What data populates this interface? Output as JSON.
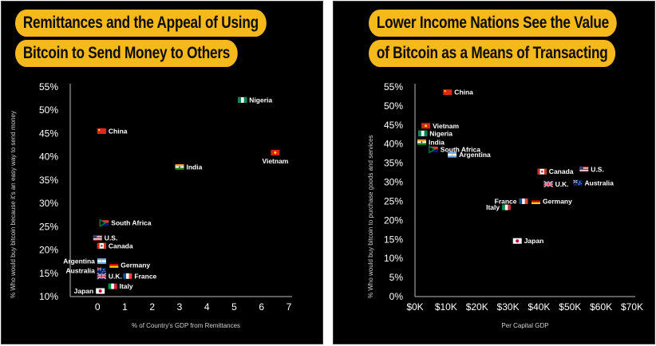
{
  "colors": {
    "background": "#000000",
    "accent": "#f6b91c",
    "axis": "#bdbdbd",
    "text": "#ffffff"
  },
  "panels": [
    {
      "title_line1": "Remittances and the Appeal of Using",
      "title_line2": "Bitcoin to Send Money to Others",
      "ylabel": "% Who would buy bitcoin because it's an easy way to send money",
      "xlabel": "% of Country's GDP from Remittances"
    },
    {
      "title_line1": "Lower Income Nations See the Value",
      "title_line2": "of Bitcoin as a Means of Transacting",
      "ylabel": "% Who would buy bitcoin to purchase goods and services",
      "xlabel": "Per Capital GDP"
    }
  ],
  "chart_data": [
    {
      "type": "scatter",
      "title": "Remittances and the Appeal of Using Bitcoin to Send Money to Others",
      "xlabel": "% of Country's GDP from Remittances",
      "ylabel": "% Who would buy bitcoin because it's an easy way to send money",
      "xlim": [
        -1,
        7
      ],
      "ylim": [
        10,
        55
      ],
      "x_ticks": [
        "0",
        "1",
        "2",
        "3",
        "4",
        "5",
        "6",
        "7"
      ],
      "y_ticks": [
        "10%",
        "15%",
        "20%",
        "25%",
        "30%",
        "35%",
        "40%",
        "45%",
        "50%",
        "55%"
      ],
      "grid": false,
      "points": [
        {
          "label": "Nigeria",
          "flag": "nigeria-flag",
          "x": 5.3,
          "y": 52.2,
          "label_side": "right"
        },
        {
          "label": "China",
          "flag": "china-flag",
          "x": 0.15,
          "y": 45.5,
          "label_side": "right"
        },
        {
          "label": "Vietnam",
          "flag": "vietnam-flag",
          "x": 6.5,
          "y": 40.9,
          "label_side": "below"
        },
        {
          "label": "India",
          "flag": "india-flag",
          "x": 3.0,
          "y": 37.8,
          "label_side": "right"
        },
        {
          "label": "South Africa",
          "flag": "south-africa-flag",
          "x": 0.25,
          "y": 25.8,
          "label_side": "right"
        },
        {
          "label": "U.S.",
          "flag": "us-flag",
          "x": 0.0,
          "y": 22.6,
          "label_side": "right"
        },
        {
          "label": "Canada",
          "flag": "canada-flag",
          "x": 0.15,
          "y": 20.9,
          "label_side": "right"
        },
        {
          "label": "Argentina",
          "flag": "argentina-flag",
          "x": 0.15,
          "y": 17.6,
          "label_side": "left"
        },
        {
          "label": "Germany",
          "flag": "germany-flag",
          "x": 0.6,
          "y": 16.8,
          "label_side": "right"
        },
        {
          "label": "Australia",
          "flag": "australia-flag",
          "x": 0.15,
          "y": 15.6,
          "label_side": "left"
        },
        {
          "label": "U.K.",
          "flag": "uk-flag",
          "x": 0.15,
          "y": 14.4,
          "label_side": "right"
        },
        {
          "label": "France",
          "flag": "france-flag",
          "x": 1.1,
          "y": 14.4,
          "label_side": "right"
        },
        {
          "label": "Italy",
          "flag": "italy-flag",
          "x": 0.55,
          "y": 12.2,
          "label_side": "right"
        },
        {
          "label": "Japan",
          "flag": "japan-flag",
          "x": 0.1,
          "y": 11.2,
          "label_side": "left"
        }
      ]
    },
    {
      "type": "scatter",
      "title": "Lower Income Nations See the Value of Bitcoin as a Means of Transacting",
      "xlabel": "Per Capital GDP",
      "ylabel": "% Who would buy bitcoin to purchase goods and services",
      "xlim": [
        0,
        70000
      ],
      "ylim": [
        0,
        55
      ],
      "x_ticks": [
        "$0K",
        "$10K",
        "$20K",
        "$30K",
        "$40K",
        "$50K",
        "$60K",
        "$70K"
      ],
      "y_ticks": [
        "0%",
        "5%",
        "10%",
        "15%",
        "20%",
        "25%",
        "30%",
        "35%",
        "40%",
        "45%",
        "50%",
        "55%"
      ],
      "grid": false,
      "points": [
        {
          "label": "China",
          "flag": "china-flag",
          "x": 10500,
          "y": 53.6,
          "label_side": "right"
        },
        {
          "label": "Vietnam",
          "flag": "vietnam-flag",
          "x": 3500,
          "y": 44.8,
          "label_side": "right"
        },
        {
          "label": "Nigeria",
          "flag": "nigeria-flag",
          "x": 2500,
          "y": 42.8,
          "label_side": "right"
        },
        {
          "label": "India",
          "flag": "india-flag",
          "x": 2200,
          "y": 40.5,
          "label_side": "right"
        },
        {
          "label": "South Africa",
          "flag": "south-africa-flag",
          "x": 6000,
          "y": 38.6,
          "label_side": "right"
        },
        {
          "label": "Argentina",
          "flag": "argentina-flag",
          "x": 12000,
          "y": 37.2,
          "label_side": "right"
        },
        {
          "label": "Canada",
          "flag": "canada-flag",
          "x": 41000,
          "y": 32.8,
          "label_side": "right"
        },
        {
          "label": "U.S.",
          "flag": "us-flag",
          "x": 54500,
          "y": 33.4,
          "label_side": "right"
        },
        {
          "label": "U.K.",
          "flag": "uk-flag",
          "x": 43000,
          "y": 29.5,
          "label_side": "right"
        },
        {
          "label": "Australia",
          "flag": "australia-flag",
          "x": 52500,
          "y": 29.8,
          "label_side": "right"
        },
        {
          "label": "France",
          "flag": "france-flag",
          "x": 35000,
          "y": 25.0,
          "label_side": "left"
        },
        {
          "label": "Germany",
          "flag": "germany-flag",
          "x": 39000,
          "y": 25.0,
          "label_side": "right"
        },
        {
          "label": "Italy",
          "flag": "italy-flag",
          "x": 29500,
          "y": 23.4,
          "label_side": "left"
        },
        {
          "label": "Japan",
          "flag": "japan-flag",
          "x": 33000,
          "y": 14.6,
          "label_side": "right"
        }
      ]
    }
  ]
}
